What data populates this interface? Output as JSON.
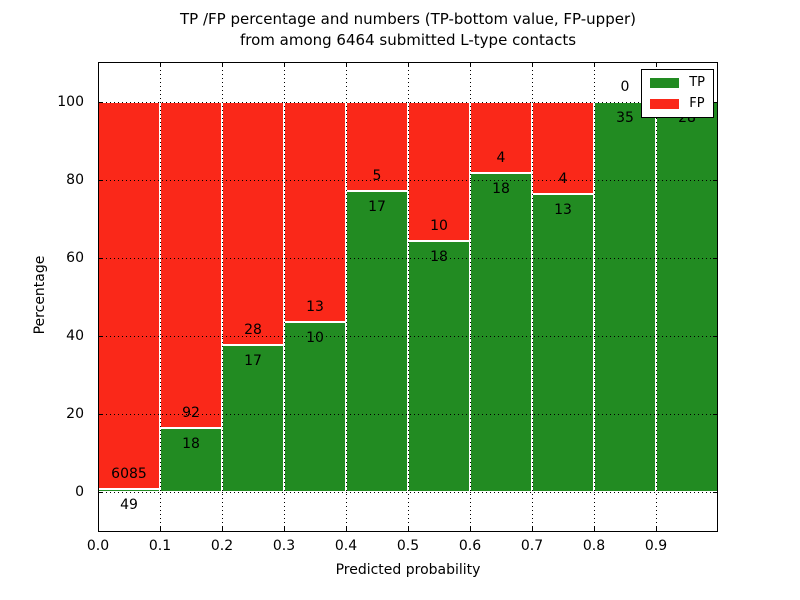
{
  "title": {
    "line1": "TP /FP percentage and numbers (TP-bottom value, FP-upper)",
    "line2": "from among 6464 submitted L-type contacts"
  },
  "chart_data": {
    "type": "bar",
    "stacked": true,
    "title": "TP /FP percentage and numbers (TP-bottom value, FP-upper) from among 6464 submitted L-type contacts",
    "xlabel": "Predicted probability",
    "ylabel": "Percentage",
    "xlim": [
      0.0,
      1.0
    ],
    "ylim": [
      -10.3,
      110.3
    ],
    "grid": true,
    "x_ticks": [
      0.0,
      0.1,
      0.2,
      0.3,
      0.4,
      0.5,
      0.6,
      0.7,
      0.8,
      0.9
    ],
    "x_tick_labels": [
      "0.0",
      "0.1",
      "0.2",
      "0.3",
      "0.4",
      "0.5",
      "0.6",
      "0.7",
      "0.8",
      "0.9"
    ],
    "y_ticks": [
      0,
      20,
      40,
      60,
      80,
      100
    ],
    "y_tick_labels": [
      "0",
      "20",
      "40",
      "60",
      "80",
      "100"
    ],
    "legend": {
      "position": "upper right"
    },
    "series": [
      {
        "name": "TP",
        "color": "#228B22",
        "counts": [
          49,
          18,
          17,
          10,
          17,
          18,
          18,
          13,
          35,
          28
        ]
      },
      {
        "name": "FP",
        "color": "#FA2819",
        "counts": [
          6085,
          92,
          28,
          13,
          5,
          10,
          4,
          4,
          0,
          0
        ]
      }
    ],
    "bins": [
      {
        "x0": 0.0,
        "x1": 0.1,
        "tp": 49,
        "fp": 6085,
        "tp_pct": 0.8,
        "tp_label": "49",
        "fp_label": "6085"
      },
      {
        "x0": 0.1,
        "x1": 0.2,
        "tp": 18,
        "fp": 92,
        "tp_pct": 16.36,
        "tp_label": "18",
        "fp_label": "92"
      },
      {
        "x0": 0.2,
        "x1": 0.3,
        "tp": 17,
        "fp": 28,
        "tp_pct": 37.78,
        "tp_label": "17",
        "fp_label": "28"
      },
      {
        "x0": 0.3,
        "x1": 0.4,
        "tp": 10,
        "fp": 13,
        "tp_pct": 43.48,
        "tp_label": "10",
        "fp_label": "13"
      },
      {
        "x0": 0.4,
        "x1": 0.5,
        "tp": 17,
        "fp": 5,
        "tp_pct": 77.27,
        "tp_label": "17",
        "fp_label": "5"
      },
      {
        "x0": 0.5,
        "x1": 0.6,
        "tp": 18,
        "fp": 10,
        "tp_pct": 64.29,
        "tp_label": "18",
        "fp_label": "10"
      },
      {
        "x0": 0.6,
        "x1": 0.7,
        "tp": 18,
        "fp": 4,
        "tp_pct": 81.82,
        "tp_label": "18",
        "fp_label": "4"
      },
      {
        "x0": 0.7,
        "x1": 0.8,
        "tp": 13,
        "fp": 4,
        "tp_pct": 76.47,
        "tp_label": "13",
        "fp_label": "4"
      },
      {
        "x0": 0.8,
        "x1": 0.9,
        "tp": 35,
        "fp": 0,
        "tp_pct": 100,
        "tp_label": "35",
        "fp_label": "0"
      },
      {
        "x0": 0.9,
        "x1": 1.0,
        "tp": 28,
        "fp": 0,
        "tp_pct": 100,
        "tp_label": "28",
        "fp_label": ""
      }
    ]
  }
}
